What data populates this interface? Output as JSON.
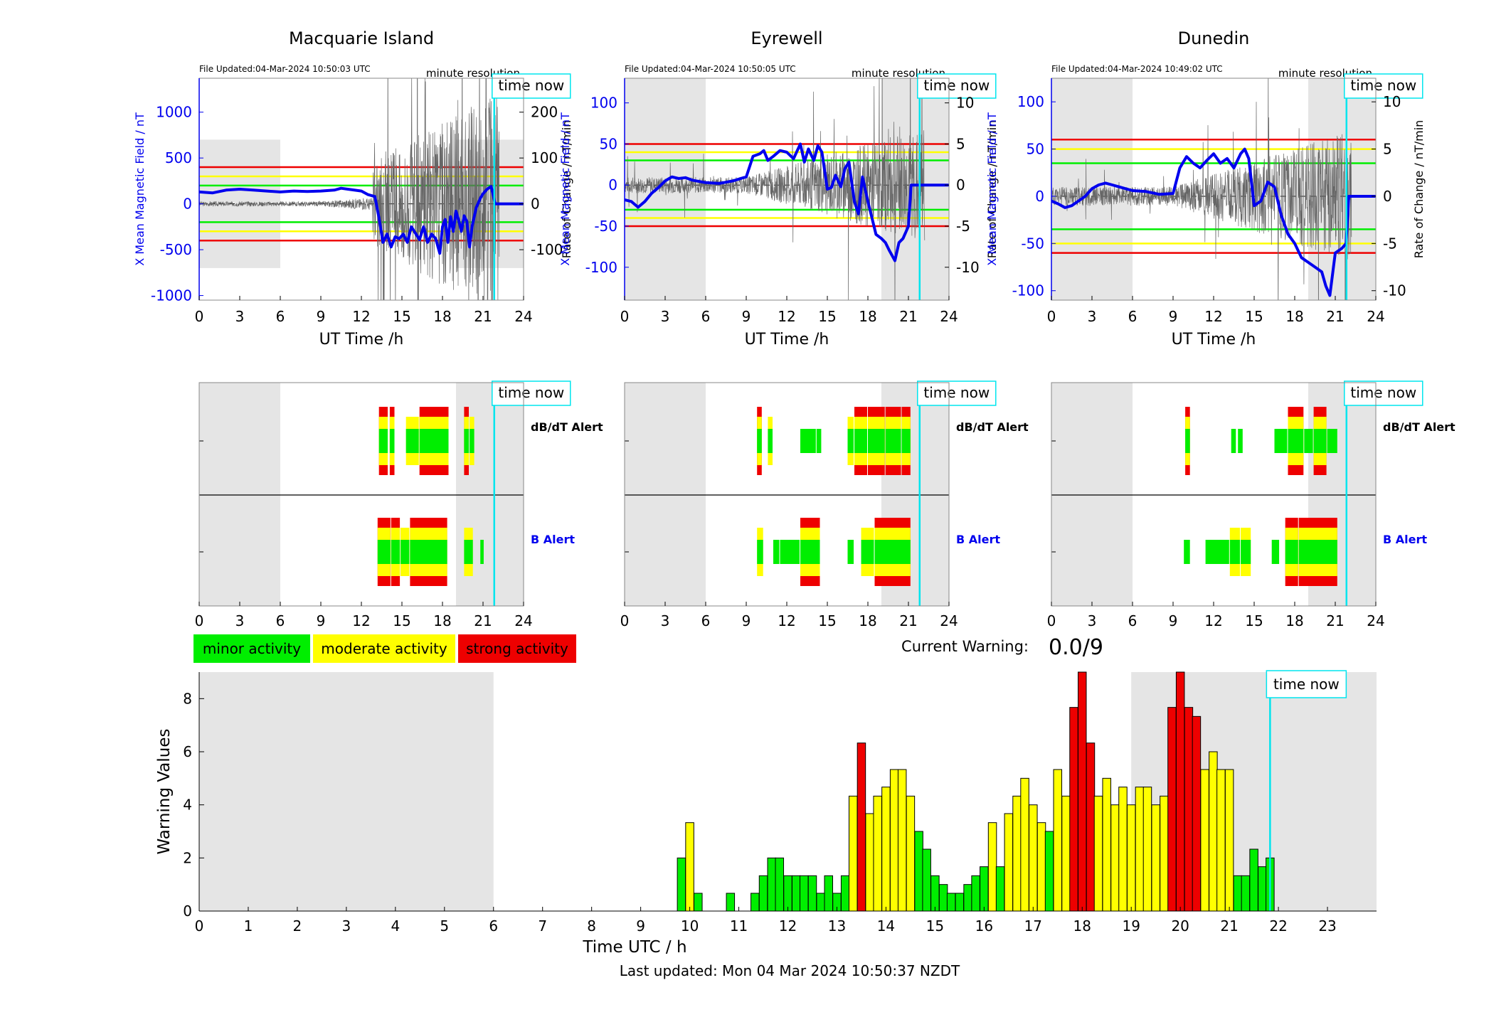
{
  "stations": [
    {
      "name": "Macquarie Island",
      "file_updated": "File Updated:04-Mar-2024 10:50:03 UTC",
      "resolution": "minute resolution",
      "ylabel_left": "X Mean Magnetic Field / nT",
      "ylabel_right": "Rate of Change / nT/min",
      "xlabel": "UT Time /h",
      "time_now_label": "time now",
      "left_ticks": [
        -1000,
        -500,
        0,
        500,
        1000
      ],
      "right_ticks": [
        -100,
        0,
        100,
        200
      ],
      "left_ylim": [
        -1050,
        1370
      ],
      "right_scale": 5,
      "thresholds": {
        "red": 400,
        "yellow": 300,
        "green": 200
      },
      "shade_band": [
        -700,
        700
      ],
      "b_series_x": [
        0,
        1,
        2,
        3,
        4,
        5,
        6,
        7,
        8,
        9,
        10,
        10.5,
        11,
        12,
        12.5,
        13,
        13.3,
        13.6,
        13.9,
        14.2,
        14.5,
        14.8,
        15.1,
        15.4,
        15.7,
        16,
        16.3,
        16.6,
        16.9,
        17.2,
        17.5,
        17.8,
        18,
        18.2,
        18.4,
        18.6,
        18.8,
        19,
        19.2,
        19.4,
        19.6,
        19.8,
        20,
        20.2,
        20.5,
        20.8,
        21,
        21.3,
        21.6,
        21.9,
        22.2,
        24
      ],
      "b_series_y": [
        130,
        120,
        150,
        160,
        150,
        140,
        130,
        140,
        135,
        140,
        150,
        170,
        160,
        140,
        100,
        80,
        -150,
        -420,
        -330,
        -470,
        -360,
        -380,
        -330,
        -420,
        -250,
        -320,
        -390,
        -250,
        -420,
        -330,
        -380,
        -540,
        -250,
        -170,
        -420,
        -140,
        -300,
        -80,
        -180,
        -300,
        -130,
        -190,
        -470,
        -240,
        -40,
        60,
        110,
        160,
        190,
        0,
        0,
        0
      ],
      "db_seed": 3,
      "db_active": [
        [
          12.8,
          22.2
        ]
      ],
      "db_amp": 35,
      "alert_db": [
        {
          "s": 13.3,
          "e": 14.0,
          "lvl": 3
        },
        {
          "s": 14.1,
          "e": 14.5,
          "lvl": 3
        },
        {
          "s": 15.3,
          "e": 16.3,
          "lvl": 2
        },
        {
          "s": 16.3,
          "e": 18.5,
          "lvl": 3
        },
        {
          "s": 19.6,
          "e": 20.0,
          "lvl": 3
        },
        {
          "s": 20.0,
          "e": 20.4,
          "lvl": 2
        }
      ],
      "alert_b": [
        {
          "s": 13.2,
          "e": 14.2,
          "lvl": 3
        },
        {
          "s": 14.2,
          "e": 14.9,
          "lvl": 3
        },
        {
          "s": 14.9,
          "e": 15.6,
          "lvl": 2
        },
        {
          "s": 15.6,
          "e": 18.4,
          "lvl": 3
        },
        {
          "s": 19.6,
          "e": 20.3,
          "lvl": 2
        },
        {
          "s": 20.8,
          "e": 21.1,
          "lvl": 1
        }
      ]
    },
    {
      "name": "Eyrewell",
      "file_updated": "File Updated:04-Mar-2024 10:50:05 UTC",
      "resolution": "minute resolution",
      "ylabel_left": "X Mean Magnetic Field / nT",
      "ylabel_right": "Rate of Change / nT/min",
      "xlabel": "UT Time /h",
      "time_now_label": "time now",
      "left_ticks": [
        -100,
        -50,
        0,
        50,
        100
      ],
      "right_ticks": [
        -10,
        -5,
        0,
        5,
        10
      ],
      "left_ylim": [
        -140,
        130
      ],
      "right_scale": 10,
      "thresholds": {
        "red": 50,
        "yellow": 40,
        "green": 30
      },
      "shade_band": null,
      "b_series_x": [
        0,
        0.5,
        1,
        1.5,
        2,
        2.5,
        3,
        3.5,
        4,
        4.5,
        5,
        6,
        7,
        8,
        9,
        9.5,
        10,
        10.3,
        10.6,
        11,
        11.5,
        12,
        12.5,
        13,
        13.3,
        13.6,
        14,
        14.3,
        14.6,
        15,
        15.3,
        15.6,
        16,
        16.3,
        16.6,
        17,
        17.3,
        17.6,
        18,
        18.3,
        18.6,
        19,
        19.3,
        19.6,
        20,
        20.3,
        20.6,
        21,
        21.2,
        24
      ],
      "b_series_y": [
        -18,
        -20,
        -27,
        -20,
        -10,
        -3,
        5,
        10,
        8,
        9,
        6,
        3,
        2,
        5,
        10,
        35,
        38,
        42,
        30,
        35,
        42,
        40,
        32,
        50,
        28,
        44,
        30,
        48,
        40,
        -5,
        -3,
        12,
        -2,
        20,
        28,
        -20,
        -35,
        10,
        -20,
        -40,
        -60,
        -65,
        -70,
        -80,
        -92,
        -70,
        -65,
        -50,
        0,
        0
      ],
      "db_seed": 7,
      "db_active": [
        [
          0,
          24
        ]
      ],
      "db_amp": 1,
      "alert_db": [
        {
          "s": 9.8,
          "e": 10.2,
          "lvl": 3
        },
        {
          "s": 10.6,
          "e": 11.0,
          "lvl": 2
        },
        {
          "s": 13.0,
          "e": 14.2,
          "lvl": 1
        },
        {
          "s": 14.2,
          "e": 14.6,
          "lvl": 1
        },
        {
          "s": 16.5,
          "e": 17.0,
          "lvl": 2
        },
        {
          "s": 17.0,
          "e": 18.0,
          "lvl": 3
        },
        {
          "s": 18.0,
          "e": 19.3,
          "lvl": 3
        },
        {
          "s": 19.3,
          "e": 20.5,
          "lvl": 3
        },
        {
          "s": 20.5,
          "e": 21.2,
          "lvl": 3
        }
      ],
      "alert_b": [
        {
          "s": 9.8,
          "e": 10.3,
          "lvl": 2
        },
        {
          "s": 11.0,
          "e": 11.5,
          "lvl": 1
        },
        {
          "s": 11.5,
          "e": 13.0,
          "lvl": 1
        },
        {
          "s": 13.0,
          "e": 14.5,
          "lvl": 3
        },
        {
          "s": 16.5,
          "e": 17.0,
          "lvl": 1
        },
        {
          "s": 17.5,
          "e": 18.5,
          "lvl": 2
        },
        {
          "s": 18.5,
          "e": 21.2,
          "lvl": 3
        }
      ]
    },
    {
      "name": "Dunedin",
      "file_updated": "File Updated:04-Mar-2024 10:49:02 UTC",
      "resolution": "minute resolution",
      "ylabel_left": "X Mean Magnetic Field / nT",
      "ylabel_right": "Rate of Change / nT/min",
      "xlabel": "UT Time /h",
      "time_now_label": "time now",
      "left_ticks": [
        -100,
        -50,
        0,
        50,
        100
      ],
      "right_ticks": [
        -10,
        -5,
        0,
        5,
        10
      ],
      "left_ylim": [
        -110,
        125
      ],
      "right_scale": 10,
      "thresholds": {
        "red": 60,
        "yellow": 50,
        "green": 35
      },
      "shade_band": null,
      "b_series_x": [
        0,
        0.5,
        1,
        1.5,
        2,
        2.5,
        3,
        3.5,
        4,
        4.5,
        5,
        6,
        7,
        8,
        9,
        9.5,
        10,
        10.5,
        11,
        11.5,
        12,
        12.5,
        13,
        13.5,
        14,
        14.3,
        14.6,
        15,
        15.5,
        16,
        16.5,
        17,
        17.5,
        18,
        18.5,
        19,
        19.5,
        20,
        20.3,
        20.6,
        21,
        21.5,
        21.8,
        22,
        24
      ],
      "b_series_y": [
        -5,
        -8,
        -12,
        -10,
        -5,
        0,
        8,
        12,
        14,
        12,
        10,
        6,
        5,
        2,
        3,
        30,
        42,
        35,
        30,
        38,
        45,
        35,
        40,
        30,
        45,
        50,
        40,
        -10,
        -5,
        15,
        10,
        -20,
        -40,
        -50,
        -65,
        -70,
        -75,
        -80,
        -95,
        -105,
        -60,
        -55,
        -50,
        0,
        0
      ],
      "db_seed": 11,
      "db_active": [
        [
          0,
          24
        ]
      ],
      "db_amp": 1,
      "alert_db": [
        {
          "s": 9.9,
          "e": 10.3,
          "lvl": 3
        },
        {
          "s": 13.3,
          "e": 13.7,
          "lvl": 1
        },
        {
          "s": 13.8,
          "e": 14.2,
          "lvl": 1
        },
        {
          "s": 16.5,
          "e": 17.5,
          "lvl": 1
        },
        {
          "s": 17.5,
          "e": 18.7,
          "lvl": 3
        },
        {
          "s": 18.7,
          "e": 19.4,
          "lvl": 1
        },
        {
          "s": 19.4,
          "e": 20.4,
          "lvl": 3
        },
        {
          "s": 20.4,
          "e": 21.2,
          "lvl": 1
        }
      ],
      "alert_b": [
        {
          "s": 9.8,
          "e": 10.3,
          "lvl": 1
        },
        {
          "s": 11.4,
          "e": 13.2,
          "lvl": 1
        },
        {
          "s": 13.2,
          "e": 14.0,
          "lvl": 2
        },
        {
          "s": 14.0,
          "e": 14.8,
          "lvl": 2
        },
        {
          "s": 16.3,
          "e": 16.9,
          "lvl": 1
        },
        {
          "s": 17.3,
          "e": 18.3,
          "lvl": 3
        },
        {
          "s": 18.3,
          "e": 21.2,
          "lvl": 3
        }
      ]
    }
  ],
  "alert_rows": {
    "db_label": "dB/dT Alert",
    "b_label": "B Alert"
  },
  "legend": [
    {
      "label": "minor activity",
      "color": "#00ee00"
    },
    {
      "label": "moderate activity",
      "color": "#ffff00"
    },
    {
      "label": "strong activity",
      "color": "#ee0000"
    }
  ],
  "current_warning": {
    "label": "Current Warning:",
    "value": "0.0/9"
  },
  "time_now_hour": 21.83,
  "shaded_hours_top": [
    [
      0,
      6
    ],
    [
      19,
      24
    ]
  ],
  "colors": {
    "minor": "#00ee00",
    "moderate": "#ffff00",
    "strong": "#ee0000",
    "time_now": "#00e5ee",
    "shade": "#e5e5e5",
    "trace": "#0000ee"
  },
  "chart_data": {
    "type": "bar",
    "title": "",
    "xlabel": "Time UTC / h",
    "ylabel": "Warning Values",
    "xlim": [
      0,
      24
    ],
    "ylim": [
      0,
      9
    ],
    "x_ticks": [
      "0",
      "1",
      "2",
      "3",
      "4",
      "5",
      "6",
      "7",
      "8",
      "9",
      "10",
      "11",
      "12",
      "13",
      "14",
      "15",
      "16",
      "17",
      "18",
      "19",
      "20",
      "21",
      "22",
      "23"
    ],
    "y_ticks": [
      0,
      2,
      4,
      6,
      8
    ],
    "time_now_label": "time now",
    "shaded_hours": [
      [
        0,
        6
      ],
      [
        19,
        24
      ]
    ],
    "bar_width_h": 0.1667,
    "bars": [
      {
        "x": 9.83,
        "y": 2.0,
        "level": "minor"
      },
      {
        "x": 10.0,
        "y": 3.33,
        "level": "moderate"
      },
      {
        "x": 10.17,
        "y": 0.67,
        "level": "minor"
      },
      {
        "x": 10.83,
        "y": 0.67,
        "level": "minor"
      },
      {
        "x": 11.33,
        "y": 0.67,
        "level": "minor"
      },
      {
        "x": 11.5,
        "y": 1.33,
        "level": "minor"
      },
      {
        "x": 11.67,
        "y": 2.0,
        "level": "minor"
      },
      {
        "x": 11.83,
        "y": 2.0,
        "level": "minor"
      },
      {
        "x": 12.0,
        "y": 1.33,
        "level": "minor"
      },
      {
        "x": 12.17,
        "y": 1.33,
        "level": "minor"
      },
      {
        "x": 12.33,
        "y": 1.33,
        "level": "minor"
      },
      {
        "x": 12.5,
        "y": 1.33,
        "level": "minor"
      },
      {
        "x": 12.67,
        "y": 0.67,
        "level": "minor"
      },
      {
        "x": 12.83,
        "y": 1.33,
        "level": "minor"
      },
      {
        "x": 13.0,
        "y": 0.67,
        "level": "minor"
      },
      {
        "x": 13.17,
        "y": 1.33,
        "level": "minor"
      },
      {
        "x": 13.33,
        "y": 4.33,
        "level": "moderate"
      },
      {
        "x": 13.5,
        "y": 6.33,
        "level": "strong"
      },
      {
        "x": 13.67,
        "y": 3.67,
        "level": "moderate"
      },
      {
        "x": 13.83,
        "y": 4.33,
        "level": "moderate"
      },
      {
        "x": 14.0,
        "y": 4.67,
        "level": "moderate"
      },
      {
        "x": 14.17,
        "y": 5.33,
        "level": "moderate"
      },
      {
        "x": 14.33,
        "y": 5.33,
        "level": "moderate"
      },
      {
        "x": 14.5,
        "y": 4.33,
        "level": "moderate"
      },
      {
        "x": 14.67,
        "y": 3.0,
        "level": "minor"
      },
      {
        "x": 14.83,
        "y": 2.33,
        "level": "minor"
      },
      {
        "x": 15.0,
        "y": 1.33,
        "level": "minor"
      },
      {
        "x": 15.17,
        "y": 1.0,
        "level": "minor"
      },
      {
        "x": 15.33,
        "y": 0.67,
        "level": "minor"
      },
      {
        "x": 15.5,
        "y": 0.67,
        "level": "minor"
      },
      {
        "x": 15.67,
        "y": 1.0,
        "level": "minor"
      },
      {
        "x": 15.83,
        "y": 1.33,
        "level": "minor"
      },
      {
        "x": 16.0,
        "y": 1.67,
        "level": "minor"
      },
      {
        "x": 16.17,
        "y": 3.33,
        "level": "moderate"
      },
      {
        "x": 16.33,
        "y": 1.67,
        "level": "minor"
      },
      {
        "x": 16.5,
        "y": 3.67,
        "level": "moderate"
      },
      {
        "x": 16.67,
        "y": 4.33,
        "level": "moderate"
      },
      {
        "x": 16.83,
        "y": 5.0,
        "level": "moderate"
      },
      {
        "x": 17.0,
        "y": 4.0,
        "level": "moderate"
      },
      {
        "x": 17.17,
        "y": 3.33,
        "level": "moderate"
      },
      {
        "x": 17.33,
        "y": 3.0,
        "level": "minor"
      },
      {
        "x": 17.5,
        "y": 5.33,
        "level": "moderate"
      },
      {
        "x": 17.67,
        "y": 4.33,
        "level": "moderate"
      },
      {
        "x": 17.83,
        "y": 7.67,
        "level": "strong"
      },
      {
        "x": 18.0,
        "y": 9.0,
        "level": "strong"
      },
      {
        "x": 18.17,
        "y": 6.33,
        "level": "strong"
      },
      {
        "x": 18.33,
        "y": 4.33,
        "level": "moderate"
      },
      {
        "x": 18.5,
        "y": 5.0,
        "level": "moderate"
      },
      {
        "x": 18.67,
        "y": 4.0,
        "level": "moderate"
      },
      {
        "x": 18.83,
        "y": 4.67,
        "level": "moderate"
      },
      {
        "x": 19.0,
        "y": 4.0,
        "level": "moderate"
      },
      {
        "x": 19.17,
        "y": 4.67,
        "level": "moderate"
      },
      {
        "x": 19.33,
        "y": 4.67,
        "level": "moderate"
      },
      {
        "x": 19.5,
        "y": 4.0,
        "level": "moderate"
      },
      {
        "x": 19.67,
        "y": 4.33,
        "level": "moderate"
      },
      {
        "x": 19.83,
        "y": 7.67,
        "level": "strong"
      },
      {
        "x": 20.0,
        "y": 9.0,
        "level": "strong"
      },
      {
        "x": 20.17,
        "y": 7.67,
        "level": "strong"
      },
      {
        "x": 20.33,
        "y": 7.33,
        "level": "strong"
      },
      {
        "x": 20.5,
        "y": 5.33,
        "level": "moderate"
      },
      {
        "x": 20.67,
        "y": 6.0,
        "level": "moderate"
      },
      {
        "x": 20.83,
        "y": 5.33,
        "level": "moderate"
      },
      {
        "x": 21.0,
        "y": 5.33,
        "level": "moderate"
      },
      {
        "x": 21.17,
        "y": 1.33,
        "level": "minor"
      },
      {
        "x": 21.33,
        "y": 1.33,
        "level": "minor"
      },
      {
        "x": 21.5,
        "y": 2.33,
        "level": "minor"
      },
      {
        "x": 21.67,
        "y": 1.67,
        "level": "minor"
      },
      {
        "x": 21.83,
        "y": 2.0,
        "level": "minor"
      }
    ]
  },
  "footer": {
    "last_updated": "Last updated: Mon 04 Mar 2024 10:50:37 NZDT"
  }
}
